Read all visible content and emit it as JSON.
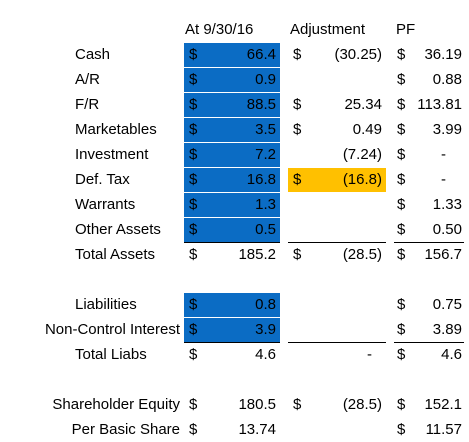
{
  "colors": {
    "highlight_blue": "#0B6CC4",
    "highlight_yellow": "#FFC000"
  },
  "headers": {
    "date": "At 9/30/16",
    "adjustment": "Adjustment",
    "pf": "PF"
  },
  "currency": "$",
  "rows": [
    {
      "label": "Cash",
      "base": "66.4",
      "adj": "(30.25)",
      "pf": "36.19"
    },
    {
      "label": "A/R",
      "base": "0.9",
      "adj": "",
      "pf": "0.88"
    },
    {
      "label": "F/R",
      "base": "88.5",
      "adj": "25.34",
      "pf": "113.81"
    },
    {
      "label": "Marketables",
      "base": "3.5",
      "adj": "0.49",
      "pf": "3.99"
    },
    {
      "label": "Investment",
      "base": "7.2",
      "adj": "(7.24)",
      "pf": "-"
    },
    {
      "label": "Def. Tax",
      "base": "16.8",
      "adj": "(16.8)",
      "pf": "-"
    },
    {
      "label": "Warrants",
      "base": "1.3",
      "adj": "",
      "pf": "1.33"
    },
    {
      "label": "Other Assets",
      "base": "0.5",
      "adj": "",
      "pf": "0.50"
    },
    {
      "label": "Total Assets",
      "base": "185.2",
      "adj": "(28.5)",
      "pf": "156.7"
    },
    {
      "label": "Liabilities",
      "base": "0.8",
      "adj": "",
      "pf": "0.75"
    },
    {
      "label": "Non-Control Interest",
      "base": "3.9",
      "adj": "",
      "pf": "3.89"
    },
    {
      "label": "Total Liabs",
      "base": "4.6",
      "adj": "-",
      "pf": "4.6"
    },
    {
      "label": "Shareholder Equity",
      "base": "180.5",
      "adj": "(28.5)",
      "pf": "152.1"
    },
    {
      "label": "Per Basic Share",
      "base": "13.74",
      "adj": "",
      "pf": "11.57"
    }
  ]
}
